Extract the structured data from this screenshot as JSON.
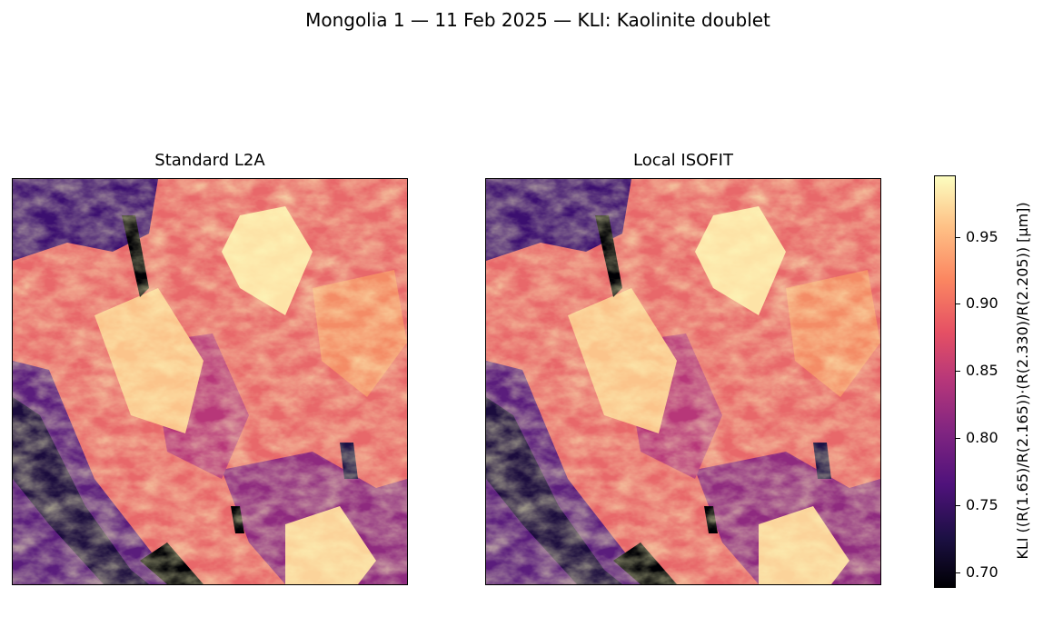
{
  "figure": {
    "title": "Mongolia 1 — 11 Feb 2025 — KLI: Kaolinite doublet"
  },
  "panels": [
    {
      "title": "Standard L2A"
    },
    {
      "title": "Local ISOFIT"
    }
  ],
  "colorbar": {
    "colormap": "magma",
    "label": "KLI  ((R(1.65)/R(2.165))·(R(2.330)/R(2.205))  [µm])",
    "ticks": [
      "0.70",
      "0.75",
      "0.80",
      "0.85",
      "0.90",
      "0.95"
    ],
    "range": [
      0.69,
      0.995
    ]
  }
}
